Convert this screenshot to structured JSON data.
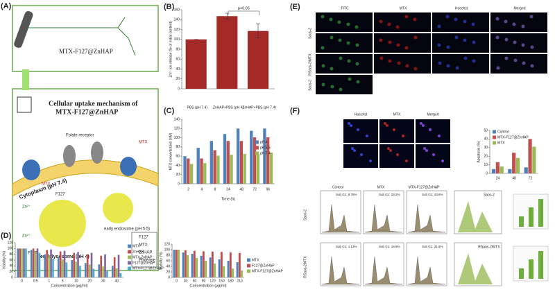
{
  "panels": {
    "a": "(A)",
    "b": "(B)",
    "c": "(C)",
    "d": "(D)",
    "e": "(E)",
    "f": "(F)"
  },
  "diagram": {
    "compound": "MTX-F127@ZnHAP",
    "uptake_title": "Cellular uptake mechanism of",
    "uptake_subtitle": "MTX-F127@ZnHAP",
    "folate": "Folate receptor",
    "mtx": "MTX",
    "f127": "F127",
    "zn": "Zn²⁺",
    "cytoplasm": "Cytoplasm (pH 7.4)",
    "early": "early endosome (pH 5.5)",
    "endolysosome": "endolysosome (pH 4)",
    "key": [
      "F127",
      "MTX",
      "ZnHAP",
      "Protease"
    ]
  },
  "micro_e": {
    "columns": [
      "FITC",
      "MTX",
      "Hoechst",
      "Merged"
    ],
    "rows": [
      "Saos-2",
      "RSaos-2/MTX",
      "Saos-2"
    ]
  },
  "micro_f": {
    "columns": [
      "Hoechst",
      "MTX",
      "Merged"
    ],
    "flow_columns": [
      "Control",
      "MTX",
      "MTX-F127@ZnHAP"
    ],
    "flow_rows": [
      "Saos-2",
      "RSaos-2/MTX"
    ],
    "sub_g1": [
      [
        "Sub G1: 8.76%",
        "Sub G1: 23.2%",
        "Sub G1: 43.6%"
      ],
      [
        "Sub G1: 1.13%",
        "Sub G1: 18.8%",
        "Sub G1: 31.5%"
      ]
    ],
    "overlay_titles": [
      "Saos-2",
      "RSaos-2/MTX"
    ]
  },
  "chart_data": [
    {
      "type": "bar",
      "ylabel": "Zn²⁺ ion release (% of initial content)",
      "categories": [
        "PBS (pH 7.4)",
        "ZnHAP+PBS (pH 4)",
        "ZnHAP+PBS (pH 7.4)"
      ],
      "values": [
        100,
        147,
        117
      ],
      "errors": [
        0,
        6,
        14
      ],
      "color": "#a32a26",
      "annotation": "p<0.05",
      "ylim": [
        0,
        160
      ],
      "yticks": [
        0,
        20,
        40,
        60,
        80,
        100,
        120,
        140,
        160
      ]
    },
    {
      "type": "bar",
      "xlabel": "Time (h)",
      "ylabel": "MTX concentration (nM)",
      "categories": [
        "2",
        "4",
        "8",
        "24",
        "48",
        "72",
        "96"
      ],
      "series": [
        {
          "name": "pH 4",
          "color": "#4f81bd",
          "values": [
            60,
            78,
            93,
            108,
            120,
            115,
            120
          ]
        },
        {
          "name": "pH 5.5",
          "color": "#c0504d",
          "values": [
            55,
            55,
            73,
            93,
            93,
            101,
            101
          ]
        },
        {
          "name": "pH 7.4",
          "color": "#9bbb59",
          "values": [
            43,
            45,
            61,
            63,
            65,
            65,
            68
          ]
        }
      ],
      "ylim": [
        0,
        140
      ],
      "yticks": [
        0,
        20,
        40,
        60,
        80,
        100,
        120,
        140
      ]
    },
    {
      "type": "bar",
      "xlabel": "Concentration (μg/ml)",
      "ylabel": "Viability (%)",
      "categories": [
        "0",
        "0.5",
        "1",
        "5",
        "10",
        "20",
        "30",
        "40"
      ],
      "series": [
        {
          "name": "MTX",
          "color": "#4f81bd",
          "values": [
            100,
            95,
            80,
            70,
            60,
            50,
            45,
            40
          ]
        },
        {
          "name": "ZnHAP",
          "color": "#c0504d",
          "values": [
            100,
            100,
            95,
            90,
            85,
            80,
            75,
            70
          ]
        },
        {
          "name": "MTX-ZnHAP",
          "color": "#9bbb59",
          "values": [
            100,
            90,
            75,
            62,
            55,
            45,
            38,
            32
          ]
        },
        {
          "name": "F127@ZnHAP",
          "color": "#8064a2",
          "values": [
            100,
            100,
            97,
            92,
            88,
            85,
            80,
            78
          ]
        },
        {
          "name": "MTX-F127@ZnHAP",
          "color": "#4bacc6",
          "values": [
            100,
            85,
            65,
            52,
            40,
            30,
            22,
            15
          ]
        }
      ],
      "ylim": [
        0,
        120
      ],
      "yticks": [
        0,
        20,
        40,
        60,
        80,
        100,
        120
      ]
    },
    {
      "type": "bar",
      "xlabel": "Concentration (μg/ml)",
      "ylabel": "Viability (%)",
      "categories": [
        "0",
        "30",
        "60",
        "90",
        "120",
        "150",
        "180",
        "210"
      ],
      "series": [
        {
          "name": "MTX",
          "color": "#4f81bd",
          "values": [
            100,
            90,
            85,
            78,
            72,
            65,
            60,
            55
          ]
        },
        {
          "name": "F127@ZnHAP",
          "color": "#c0504d",
          "values": [
            100,
            98,
            96,
            94,
            93,
            92,
            90,
            88
          ]
        },
        {
          "name": "MTX-F127@ZnHAP",
          "color": "#9bbb59",
          "values": [
            100,
            80,
            70,
            60,
            50,
            40,
            32,
            25
          ]
        }
      ],
      "ylim": [
        0,
        120
      ],
      "yticks": [
        0,
        20,
        40,
        60,
        80,
        100,
        120
      ]
    },
    {
      "type": "bar",
      "ylabel": "Apoptosis (%)",
      "categories": [
        "24",
        "48",
        "72"
      ],
      "series": [
        {
          "name": "Control",
          "color": "#4f81bd",
          "values": [
            5,
            5,
            7
          ]
        },
        {
          "name": "MTX-F127@ZnHAP",
          "color": "#c0504d",
          "values": [
            13,
            24,
            40
          ]
        },
        {
          "name": "MTX",
          "color": "#9bbb59",
          "values": [
            8,
            18,
            31
          ]
        }
      ],
      "ylim": [
        0,
        50
      ],
      "yticks": [
        0,
        10,
        20,
        30,
        40,
        50
      ]
    }
  ]
}
